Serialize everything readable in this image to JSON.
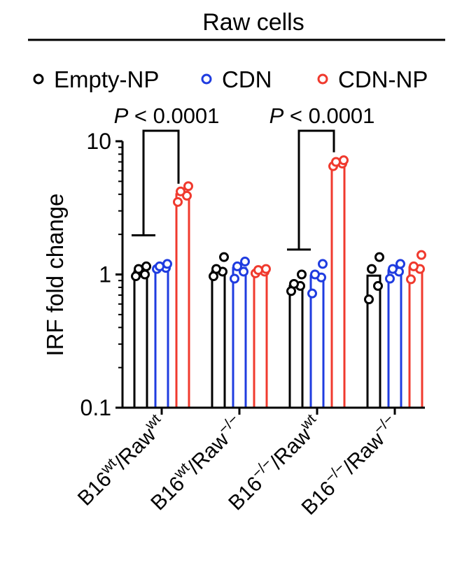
{
  "chart_data": {
    "type": "bar",
    "title": "Raw cells",
    "ylabel": "IRF fold change",
    "yscale": "log",
    "ylim": [
      0.1,
      10
    ],
    "yticks": [
      {
        "value": 0.1,
        "label": "0.1"
      },
      {
        "value": 1,
        "label": "1"
      },
      {
        "value": 10,
        "label": "10"
      }
    ],
    "legend_position": "top",
    "categories": [
      {
        "base": "B16",
        "sup1": "wt",
        "mid": "/Raw",
        "sup2": "wt"
      },
      {
        "base": "B16",
        "sup1": "wt",
        "mid": "/Raw",
        "sup2": "−/−"
      },
      {
        "base": "B16",
        "sup1": "−/−",
        "mid": "/Raw",
        "sup2": "wt"
      },
      {
        "base": "B16",
        "sup1": "−/−",
        "mid": "/Raw",
        "sup2": "−/−"
      }
    ],
    "series": [
      {
        "name": "Empty-NP",
        "color": "#000000",
        "values": [
          1.05,
          1.05,
          0.82,
          0.98
        ],
        "points": [
          [
            0.97,
            1.0,
            1.1,
            1.15
          ],
          [
            0.97,
            1.05,
            1.1,
            1.35
          ],
          [
            0.75,
            0.82,
            0.85,
            1.0
          ],
          [
            0.65,
            0.82,
            1.1,
            1.35
          ]
        ]
      },
      {
        "name": "CDN",
        "color": "#1f3ce0",
        "values": [
          1.15,
          1.12,
          0.98,
          1.07
        ],
        "points": [
          [
            1.1,
            1.12,
            1.15,
            1.2
          ],
          [
            0.93,
            1.05,
            1.15,
            1.25
          ],
          [
            0.72,
            0.95,
            1.0,
            1.2
          ],
          [
            0.93,
            1.05,
            1.1,
            1.2
          ]
        ]
      },
      {
        "name": "CDN-NP",
        "color": "#f03a2e",
        "values": [
          4.0,
          1.07,
          6.9,
          1.13
        ],
        "points": [
          [
            3.5,
            3.9,
            4.2,
            4.6
          ],
          [
            1.02,
            1.05,
            1.08,
            1.1
          ],
          [
            6.5,
            6.8,
            7.0,
            7.2
          ],
          [
            0.92,
            1.1,
            1.15,
            1.4
          ]
        ]
      }
    ],
    "annotations": [
      {
        "text": "P < 0.0001",
        "p": "P",
        "rest": " < 0.0001",
        "group": 0,
        "from": "Empty-NP",
        "to": "CDN-NP"
      },
      {
        "text": "P < 0.0001",
        "p": "P",
        "rest": " < 0.0001",
        "group": 2,
        "from": "Empty-NP",
        "to": "CDN-NP"
      }
    ]
  }
}
